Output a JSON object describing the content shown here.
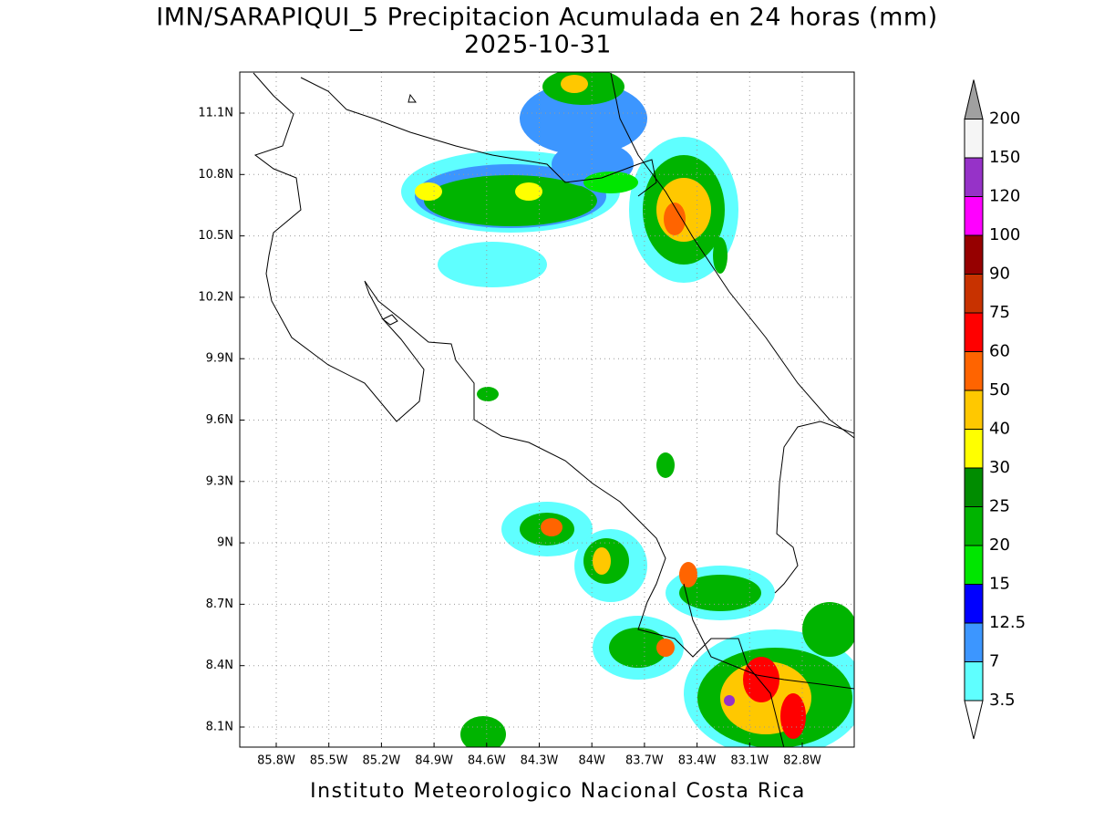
{
  "title": "IMN/SARAPIQUI_5 Precipitacion Acumulada en 24 horas (mm)",
  "subtitle": "2025-10-31",
  "footer": "Instituto Meteorologico Nacional Costa Rica",
  "map": {
    "lon_ticks": [
      "85.8W",
      "85.5W",
      "85.2W",
      "84.9W",
      "84.6W",
      "84.3W",
      "84W",
      "83.7W",
      "83.4W",
      "83.1W",
      "82.8W"
    ],
    "lat_ticks": [
      "11.1N",
      "10.8N",
      "10.5N",
      "10.2N",
      "9.9N",
      "9.6N",
      "9.3N",
      "9N",
      "8.7N",
      "8.4N",
      "8.1N"
    ]
  },
  "colorbar": {
    "levels": [
      3.5,
      7,
      12.5,
      15,
      20,
      25,
      30,
      40,
      50,
      60,
      75,
      90,
      100,
      120,
      150,
      200
    ],
    "colors": [
      "#5fffff",
      "#3c96ff",
      "#0000ff",
      "#00e600",
      "#00b400",
      "#008c00",
      "#ffff00",
      "#ffc800",
      "#ff6400",
      "#ff0000",
      "#c83200",
      "#960000",
      "#ff00ff",
      "#9632c8",
      "#f5f5f5"
    ],
    "under_color": "#ffffff",
    "over_color": "#a0a0a0"
  }
}
